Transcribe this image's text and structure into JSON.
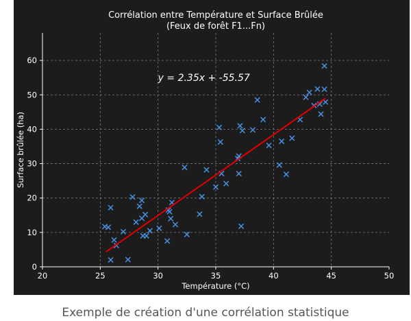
{
  "caption": "Exemple de création d'une corrélation statistique",
  "colors": {
    "background": "#1c1c1c",
    "points": "#4a90e2",
    "fit_line": "#e00000",
    "grid": "#9a9a9a",
    "text": "#ffffff"
  },
  "chart_data": {
    "type": "scatter",
    "title": "Corrélation entre Température et Surface Brûlée",
    "subtitle": "(Feux de forêt F1...Fn)",
    "xlabel": "Température (°C)",
    "ylabel": "Surface brûlée (ha)",
    "xlim": [
      20,
      50
    ],
    "ylim": [
      0,
      68
    ],
    "xticks": [
      20,
      25,
      30,
      35,
      40,
      45,
      50
    ],
    "yticks": [
      0,
      10,
      20,
      30,
      40,
      50,
      60
    ],
    "grid": true,
    "marker": "x",
    "annotation": "y = 2.35x + -55.57",
    "fit": {
      "slope": 2.35,
      "intercept": -55.57,
      "x_range": [
        25.5,
        44.5
      ]
    },
    "points": [
      [
        25.4,
        11.7
      ],
      [
        25.7,
        11.5
      ],
      [
        25.9,
        2.0
      ],
      [
        25.9,
        17.2
      ],
      [
        26.2,
        7.8
      ],
      [
        26.4,
        6.2
      ],
      [
        27.0,
        10.2
      ],
      [
        27.4,
        2.1
      ],
      [
        27.8,
        20.3
      ],
      [
        28.1,
        13.0
      ],
      [
        28.4,
        17.6
      ],
      [
        28.6,
        19.3
      ],
      [
        28.6,
        14.1
      ],
      [
        28.7,
        9.0
      ],
      [
        28.9,
        15.2
      ],
      [
        29.0,
        9.0
      ],
      [
        29.3,
        10.5
      ],
      [
        30.1,
        11.2
      ],
      [
        30.8,
        7.5
      ],
      [
        30.9,
        16.5
      ],
      [
        31.0,
        16.0
      ],
      [
        31.1,
        14.0
      ],
      [
        31.2,
        18.7
      ],
      [
        31.5,
        12.3
      ],
      [
        32.3,
        28.9
      ],
      [
        32.5,
        9.4
      ],
      [
        33.6,
        15.3
      ],
      [
        33.8,
        20.4
      ],
      [
        34.2,
        28.2
      ],
      [
        35.0,
        23.2
      ],
      [
        35.3,
        40.5
      ],
      [
        35.4,
        36.3
      ],
      [
        35.5,
        27.1
      ],
      [
        35.9,
        24.2
      ],
      [
        36.9,
        31.5
      ],
      [
        37.0,
        32.2
      ],
      [
        37.0,
        27.1
      ],
      [
        37.1,
        41.0
      ],
      [
        37.2,
        11.8
      ],
      [
        37.3,
        39.6
      ],
      [
        38.2,
        39.8
      ],
      [
        38.6,
        48.5
      ],
      [
        39.1,
        42.8
      ],
      [
        39.6,
        35.3
      ],
      [
        40.5,
        29.6
      ],
      [
        40.7,
        36.5
      ],
      [
        41.1,
        26.9
      ],
      [
        41.6,
        37.4
      ],
      [
        42.3,
        42.8
      ],
      [
        42.8,
        49.3
      ],
      [
        43.1,
        50.7
      ],
      [
        43.5,
        46.9
      ],
      [
        43.8,
        51.7
      ],
      [
        44.0,
        47.3
      ],
      [
        44.1,
        44.4
      ],
      [
        44.4,
        51.6
      ],
      [
        44.4,
        58.4
      ],
      [
        44.5,
        47.9
      ]
    ]
  }
}
